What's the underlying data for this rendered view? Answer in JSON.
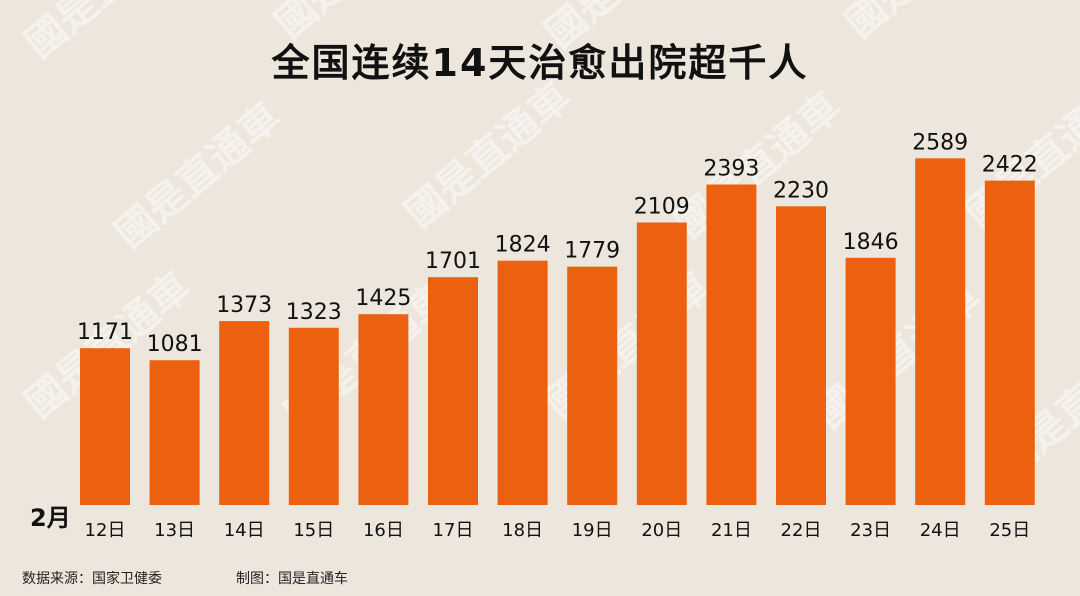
{
  "title": "全国连续14天治愈出院超千人",
  "month_label": "2月",
  "footer": {
    "source": "数据来源：国家卫健委",
    "maker": "制图：国是直通车"
  },
  "watermark_text": "國是直通車",
  "colors": {
    "background": "#ede6dc",
    "bar": "#ec6110",
    "text": "#111111"
  },
  "chart_data": {
    "type": "bar",
    "title": "全国连续14天治愈出院超千人",
    "xlabel": "",
    "ylabel": "",
    "grid": false,
    "ylim": [
      0,
      2800
    ],
    "categories": [
      "12日",
      "13日",
      "14日",
      "15日",
      "16日",
      "17日",
      "18日",
      "19日",
      "20日",
      "21日",
      "22日",
      "23日",
      "24日",
      "25日"
    ],
    "values": [
      1171,
      1081,
      1373,
      1323,
      1425,
      1701,
      1824,
      1779,
      2109,
      2393,
      2230,
      1846,
      2589,
      2422
    ]
  }
}
